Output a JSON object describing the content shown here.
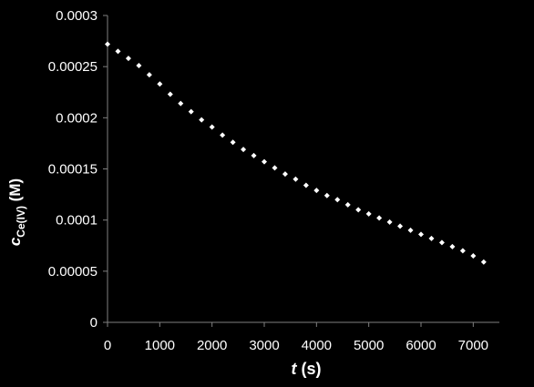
{
  "chart_data": {
    "type": "scatter",
    "title": "",
    "xlabel": {
      "main": "t",
      "unit": " (s)"
    },
    "ylabel": {
      "main": "c",
      "subscript": "Ce(IV)",
      "unit": " (M)"
    },
    "xlim": [
      0,
      7500
    ],
    "ylim": [
      0,
      0.0003
    ],
    "x_ticks": [
      "0",
      "1000",
      "2000",
      "3000",
      "4000",
      "5000",
      "6000",
      "7000"
    ],
    "y_ticks": [
      "0",
      "0.00005",
      "0.0001",
      "0.00015",
      "0.0002",
      "0.00025",
      "0.0003"
    ],
    "grid": false,
    "legend": "none",
    "marker_color": "#ffffff",
    "axis_color": "#808080",
    "background": "#000000",
    "series": [
      {
        "x": [
          0,
          200,
          400,
          600,
          800,
          1000,
          1200,
          1400,
          1600,
          1800,
          2000,
          2200,
          2400,
          2600,
          2800,
          3000,
          3200,
          3400,
          3600,
          3800,
          4000,
          4200,
          4400,
          4600,
          4800,
          5000,
          5200,
          5400,
          5600,
          5800,
          6000,
          6200,
          6400,
          6600,
          6800,
          7000,
          7200
        ],
        "y": [
          0.000272,
          0.000265,
          0.000258,
          0.000251,
          0.000242,
          0.000233,
          0.000223,
          0.000214,
          0.000206,
          0.000198,
          0.000191,
          0.000183,
          0.000176,
          0.000169,
          0.000163,
          0.000157,
          0.000151,
          0.000145,
          0.00014,
          0.000134,
          0.000129,
          0.000124,
          0.00012,
          0.000115,
          0.00011,
          0.000106,
          0.000102,
          9.8e-05,
          9.4e-05,
          9e-05,
          8.6e-05,
          8.2e-05,
          7.8e-05,
          7.4e-05,
          7e-05,
          6.5e-05,
          5.9e-05
        ]
      }
    ]
  }
}
